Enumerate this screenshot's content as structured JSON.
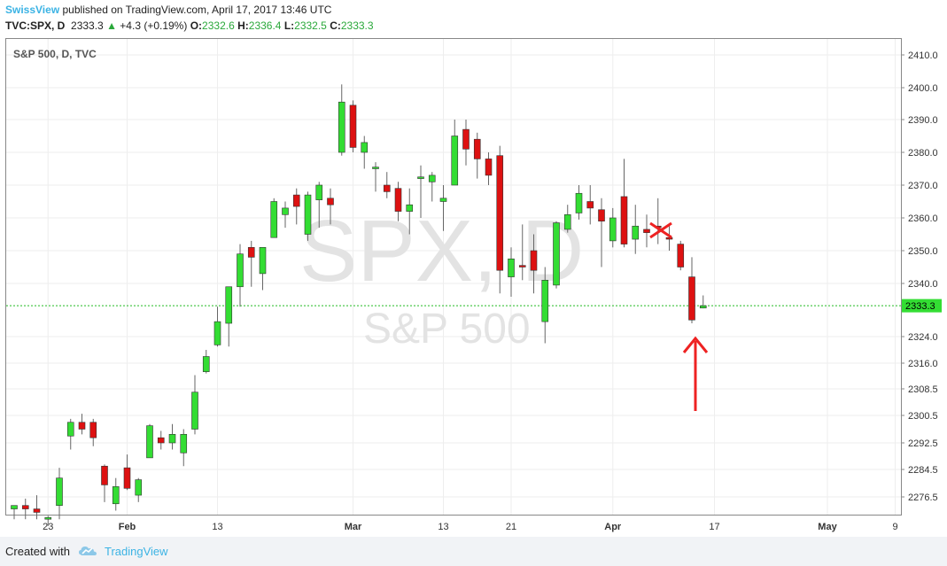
{
  "header": {
    "publisher": "SwissView",
    "published_text": "published on TradingView.com, April 17, 2017 13:46 UTC",
    "symbol": "TVC:SPX, D",
    "last": "2333.3",
    "change_arrow": "▲",
    "change": "+4.3 (+0.19%)",
    "open_label": "O:",
    "open": "2332.6",
    "high_label": "H:",
    "high": "2336.4",
    "low_label": "L:",
    "low": "2332.5",
    "close_label": "C:",
    "close": "2333.3"
  },
  "footer": {
    "created_with": "Created with",
    "brand": "TradingView"
  },
  "colors": {
    "up": "#33dd33",
    "down": "#dd1111",
    "accent": "#3bb3e4",
    "price_line": "#22bb22"
  },
  "chart_data": {
    "type": "candlestick",
    "pane_title": "S&P 500, D, TVC",
    "watermark_symbol": "SPX, D",
    "watermark_name": "S&P 500",
    "y_ticks": [
      2276.5,
      2284.5,
      2292.5,
      2300.5,
      2308.5,
      2316.0,
      2324.0,
      2340.0,
      2350.0,
      2360.0,
      2370.0,
      2380.0,
      2390.0,
      2400.0,
      2410.0
    ],
    "y_tick_labels": [
      "2276.5",
      "2284.5",
      "2292.5",
      "2300.5",
      "2308.5",
      "2316.0",
      "2324.0",
      "2340.0",
      "2350.0",
      "2360.0",
      "2370.0",
      "2380.0",
      "2390.0",
      "2400.0",
      "2410.0"
    ],
    "x_tick_labels": [
      {
        "label": "23",
        "bar": 3
      },
      {
        "label": "Feb",
        "bar": 10
      },
      {
        "label": "13",
        "bar": 18
      },
      {
        "label": "Mar",
        "bar": 30
      },
      {
        "label": "13",
        "bar": 38
      },
      {
        "label": "21",
        "bar": 44
      },
      {
        "label": "Apr",
        "bar": 53
      },
      {
        "label": "17",
        "bar": 62
      },
      {
        "label": "May",
        "bar": 72
      },
      {
        "label": "9",
        "bar": 78
      }
    ],
    "last_price": 2333.3,
    "last_price_label": "2333.3",
    "candles": [
      {
        "o": 2273.0,
        "h": 2273.5,
        "l": 2270.0,
        "c": 2274.0
      },
      {
        "o": 2274.0,
        "h": 2276.0,
        "l": 2270.0,
        "c": 2273.0
      },
      {
        "o": 2273.0,
        "h": 2277.0,
        "l": 2270.0,
        "c": 2272.0
      },
      {
        "o": 2270.0,
        "h": 2271.0,
        "l": 2268.0,
        "c": 2270.5
      },
      {
        "o": 2274.0,
        "h": 2285.0,
        "l": 2270.0,
        "c": 2282.0
      },
      {
        "o": 2294.5,
        "h": 2299.5,
        "l": 2290.5,
        "c": 2298.5
      },
      {
        "o": 2298.5,
        "h": 2301.0,
        "l": 2295.0,
        "c": 2296.5
      },
      {
        "o": 2298.5,
        "h": 2299.5,
        "l": 2291.5,
        "c": 2294.0
      },
      {
        "o": 2285.5,
        "h": 2286.0,
        "l": 2275.0,
        "c": 2280.0
      },
      {
        "o": 2274.5,
        "h": 2282.0,
        "l": 2272.5,
        "c": 2279.5
      },
      {
        "o": 2285.0,
        "h": 2289.0,
        "l": 2278.5,
        "c": 2279.0
      },
      {
        "o": 2277.0,
        "h": 2282.0,
        "l": 2275.0,
        "c": 2281.5
      },
      {
        "o": 2288.0,
        "h": 2298.0,
        "l": 2288.0,
        "c": 2297.5
      },
      {
        "o": 2294.0,
        "h": 2296.0,
        "l": 2290.5,
        "c": 2292.5
      },
      {
        "o": 2292.5,
        "h": 2298.0,
        "l": 2290.5,
        "c": 2295.0
      },
      {
        "o": 2289.5,
        "h": 2296.5,
        "l": 2285.5,
        "c": 2295.0
      },
      {
        "o": 2296.5,
        "h": 2312.5,
        "l": 2295.0,
        "c": 2307.5
      },
      {
        "o": 2313.5,
        "h": 2320.0,
        "l": 2313.0,
        "c": 2318.0
      },
      {
        "o": 2321.5,
        "h": 2333.0,
        "l": 2321.0,
        "c": 2328.5
      },
      {
        "o": 2328.0,
        "h": 2339.0,
        "l": 2321.0,
        "c": 2339.0
      },
      {
        "o": 2339.0,
        "h": 2352.0,
        "l": 2333.0,
        "c": 2349.0
      },
      {
        "o": 2351.0,
        "h": 2353.0,
        "l": 2339.0,
        "c": 2348.0
      },
      {
        "o": 2343.0,
        "h": 2351.0,
        "l": 2338.0,
        "c": 2351.0
      },
      {
        "o": 2354.0,
        "h": 2366.0,
        "l": 2354.0,
        "c": 2365.0
      },
      {
        "o": 2361.0,
        "h": 2365.0,
        "l": 2357.0,
        "c": 2363.0
      },
      {
        "o": 2367.0,
        "h": 2369.0,
        "l": 2358.0,
        "c": 2363.5
      },
      {
        "o": 2355.0,
        "h": 2368.0,
        "l": 2353.0,
        "c": 2367.0
      },
      {
        "o": 2365.5,
        "h": 2371.0,
        "l": 2357.0,
        "c": 2370.0
      },
      {
        "o": 2366.0,
        "h": 2369.0,
        "l": 2358.0,
        "c": 2364.0
      },
      {
        "o": 2380.0,
        "h": 2401.0,
        "l": 2379.0,
        "c": 2395.5
      },
      {
        "o": 2394.5,
        "h": 2396.0,
        "l": 2380.0,
        "c": 2381.5
      },
      {
        "o": 2380.0,
        "h": 2385.0,
        "l": 2375.0,
        "c": 2383.0
      },
      {
        "o": 2375.0,
        "h": 2377.0,
        "l": 2368.0,
        "c": 2375.5
      },
      {
        "o": 2370.0,
        "h": 2374.0,
        "l": 2366.0,
        "c": 2368.0
      },
      {
        "o": 2369.0,
        "h": 2371.0,
        "l": 2359.0,
        "c": 2362.0
      },
      {
        "o": 2362.0,
        "h": 2369.0,
        "l": 2355.0,
        "c": 2364.0
      },
      {
        "o": 2372.0,
        "h": 2376.0,
        "l": 2360.0,
        "c": 2372.5
      },
      {
        "o": 2371.0,
        "h": 2374.0,
        "l": 2365.0,
        "c": 2373.0
      },
      {
        "o": 2365.0,
        "h": 2370.0,
        "l": 2356.0,
        "c": 2366.0
      },
      {
        "o": 2370.0,
        "h": 2390.0,
        "l": 2370.0,
        "c": 2385.0
      },
      {
        "o": 2387.0,
        "h": 2390.0,
        "l": 2376.0,
        "c": 2381.0
      },
      {
        "o": 2384.0,
        "h": 2386.0,
        "l": 2372.0,
        "c": 2378.0
      },
      {
        "o": 2378.0,
        "h": 2380.0,
        "l": 2370.0,
        "c": 2373.0
      },
      {
        "o": 2379.0,
        "h": 2382.0,
        "l": 2337.0,
        "c": 2344.0
      },
      {
        "o": 2342.0,
        "h": 2351.0,
        "l": 2336.0,
        "c": 2347.5
      },
      {
        "o": 2345.5,
        "h": 2358.0,
        "l": 2341.0,
        "c": 2345.0
      },
      {
        "o": 2350.0,
        "h": 2355.0,
        "l": 2337.0,
        "c": 2344.0
      },
      {
        "o": 2328.5,
        "h": 2345.0,
        "l": 2322.0,
        "c": 2341.0
      },
      {
        "o": 2339.5,
        "h": 2359.0,
        "l": 2338.5,
        "c": 2358.5
      },
      {
        "o": 2356.5,
        "h": 2364.0,
        "l": 2355.5,
        "c": 2361.0
      },
      {
        "o": 2361.5,
        "h": 2370.0,
        "l": 2359.5,
        "c": 2367.5
      },
      {
        "o": 2365.0,
        "h": 2370.0,
        "l": 2358.0,
        "c": 2363.0
      },
      {
        "o": 2362.5,
        "h": 2366.0,
        "l": 2345.0,
        "c": 2359.0
      },
      {
        "o": 2353.0,
        "h": 2363.0,
        "l": 2351.0,
        "c": 2360.0
      },
      {
        "o": 2366.5,
        "h": 2378.0,
        "l": 2351.0,
        "c": 2352.0
      },
      {
        "o": 2353.5,
        "h": 2364.0,
        "l": 2349.0,
        "c": 2357.5
      },
      {
        "o": 2356.5,
        "h": 2361.0,
        "l": 2351.0,
        "c": 2355.5
      },
      {
        "o": 2357.5,
        "h": 2366.0,
        "l": 2352.0,
        "c": 2357.0
      },
      {
        "o": 2354.0,
        "h": 2358.0,
        "l": 2350.0,
        "c": 2353.5
      },
      {
        "o": 2352.0,
        "h": 2353.0,
        "l": 2344.0,
        "c": 2345.0
      },
      {
        "o": 2342.0,
        "h": 2348.0,
        "l": 2328.0,
        "c": 2329.0
      },
      {
        "o": 2332.6,
        "h": 2336.4,
        "l": 2332.5,
        "c": 2333.3
      }
    ]
  }
}
